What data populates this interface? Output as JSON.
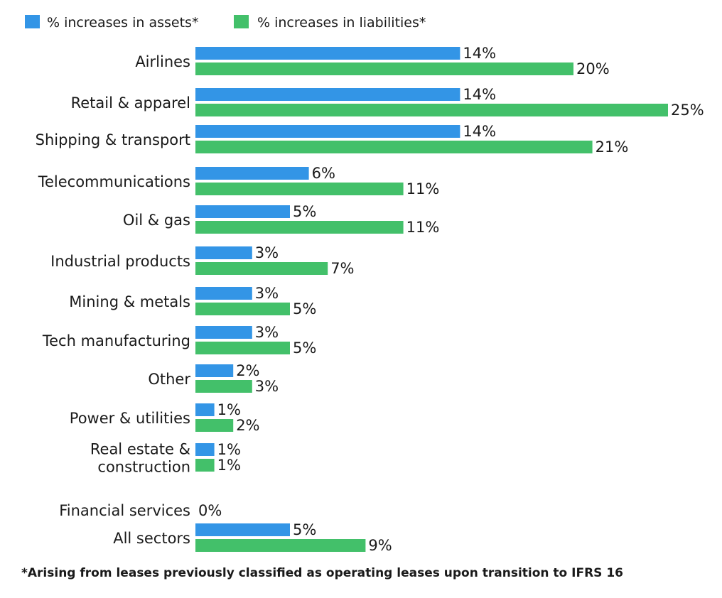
{
  "chart_data": {
    "type": "bar",
    "orientation": "horizontal",
    "categories": [
      "Airlines",
      "Retail & apparel",
      "Shipping & transport",
      "Telecommunications",
      "Oil & gas",
      "Industrial products",
      "Mining & metals",
      "Tech manufacturing",
      "Other",
      "Power & utilities",
      "Real estate & construction",
      "Financial services",
      "All sectors"
    ],
    "category_lines": [
      [
        "Airlines"
      ],
      [
        "Retail & apparel"
      ],
      [
        "Shipping & transport"
      ],
      [
        "Telecommunications"
      ],
      [
        "Oil & gas"
      ],
      [
        "Industrial products"
      ],
      [
        "Mining & metals"
      ],
      [
        "Tech manufacturing"
      ],
      [
        "Other"
      ],
      [
        "Power & utilities"
      ],
      [
        "Real estate &",
        "construction"
      ],
      [
        "Financial services"
      ],
      [
        "All sectors"
      ]
    ],
    "series": [
      {
        "name": "% increases in assets*",
        "color": "#3395e6",
        "values": [
          14,
          14,
          14,
          6,
          5,
          3,
          3,
          3,
          2,
          1,
          1,
          0,
          5
        ]
      },
      {
        "name": "% increases in liabilities*",
        "color": "#43c06a",
        "values": [
          20,
          25,
          21,
          11,
          11,
          7,
          5,
          5,
          3,
          2,
          1,
          null,
          9
        ]
      }
    ],
    "data_labels": {
      "assets": [
        "14%",
        "14%",
        "14%",
        "6%",
        "5%",
        "3%",
        "3%",
        "3%",
        "2%",
        "1%",
        "1%",
        "0%",
        "5%"
      ],
      "liabilities": [
        "20%",
        "25%",
        "21%",
        "11%",
        "11%",
        "7%",
        "5%",
        "5%",
        "3%",
        "2%",
        "1%",
        "",
        "9%"
      ]
    },
    "xlim": [
      0,
      25
    ],
    "grid": false,
    "legend": "top-left",
    "footnote": "*Arising from leases previously classified as operating leases upon transition to IFRS 16"
  }
}
